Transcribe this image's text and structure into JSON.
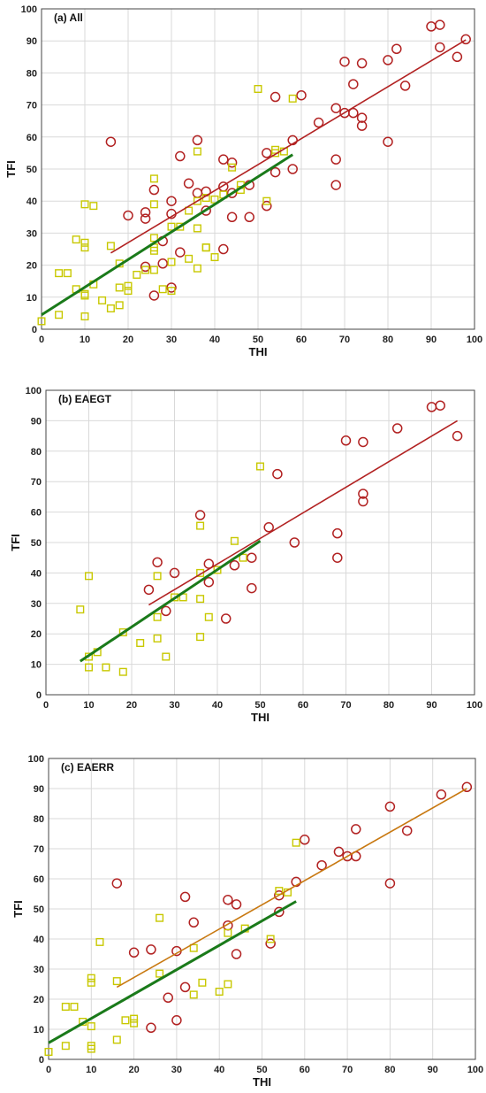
{
  "chart_data": [
    {
      "type": "scatter",
      "title": "(a) All",
      "xlabel": "THI",
      "ylabel": "TFI",
      "xlim": [
        0,
        100
      ],
      "ylim": [
        0,
        100
      ],
      "grid": true,
      "xticks": [
        "0",
        "10",
        "20",
        "30",
        "40",
        "50",
        "60",
        "70",
        "80",
        "90",
        "100"
      ],
      "yticks": [
        "0",
        "10",
        "20",
        "30",
        "40",
        "50",
        "60",
        "70",
        "80",
        "90",
        "100"
      ],
      "series": [
        {
          "marker": "circle",
          "color": "#b22222",
          "x": [
            16,
            20,
            24,
            24,
            24,
            26,
            26,
            28,
            28,
            30,
            30,
            30,
            32,
            32,
            34,
            36,
            36,
            38,
            38,
            42,
            42,
            42,
            44,
            44,
            44,
            48,
            48,
            52,
            52,
            54,
            54,
            58,
            58,
            60,
            64,
            68,
            68,
            68,
            70,
            70,
            72,
            72,
            74,
            74,
            74,
            80,
            80,
            82,
            84,
            90,
            92,
            92,
            96,
            98
          ],
          "y": [
            58.5,
            35.5,
            36.5,
            34.5,
            19.5,
            43.5,
            10.5,
            27.5,
            20.5,
            40,
            36,
            13,
            54,
            24,
            45.5,
            59,
            42.5,
            43,
            37,
            53,
            44.5,
            25,
            52,
            42.5,
            35,
            45,
            35,
            55,
            38.5,
            72.5,
            49,
            59,
            50,
            73,
            64.5,
            69,
            53,
            45,
            83.5,
            67.5,
            76.5,
            67.5,
            83,
            66,
            63.5,
            84,
            58.5,
            87.5,
            76,
            94.5,
            95,
            88,
            85,
            90.5
          ]
        },
        {
          "marker": "square",
          "color": "#c8c800",
          "x": [
            0,
            4,
            4,
            6,
            8,
            8,
            10,
            10,
            10,
            10,
            10,
            10,
            12,
            12,
            14,
            16,
            16,
            18,
            18,
            18,
            20,
            20,
            22,
            24,
            26,
            26,
            26,
            26,
            26,
            26,
            28,
            30,
            30,
            30,
            32,
            34,
            34,
            36,
            36,
            36,
            36,
            38,
            38,
            38,
            40,
            40,
            42,
            44,
            46,
            46,
            50,
            52,
            54,
            54,
            56,
            58
          ],
          "y": [
            2.5,
            17.5,
            4.5,
            17.5,
            28,
            12.5,
            39,
            27,
            25.5,
            11,
            10.5,
            4,
            38.5,
            14,
            9,
            26,
            6.5,
            20.5,
            13,
            7.5,
            13.5,
            12,
            17,
            18.5,
            47,
            39,
            28.5,
            25.5,
            24.5,
            18.5,
            12.5,
            32,
            21,
            12,
            32,
            37,
            22,
            55.5,
            40,
            31.5,
            19,
            41,
            25.5,
            25.5,
            40.5,
            22.5,
            42,
            50.5,
            45,
            43.5,
            75,
            40,
            56,
            55,
            55.5,
            72
          ]
        }
      ],
      "fit_lines": [
        {
          "color": "#b22222",
          "x": [
            16,
            98
          ],
          "y": [
            23.8,
            90.3
          ]
        },
        {
          "color": "#1a7a1a",
          "x": [
            0,
            58
          ],
          "y": [
            4.5,
            54.5
          ]
        }
      ]
    },
    {
      "type": "scatter",
      "title": "(b) EAEGT",
      "xlabel": "THI",
      "ylabel": "TFI",
      "xlim": [
        0,
        100
      ],
      "ylim": [
        0,
        100
      ],
      "grid": true,
      "xticks": [
        "0",
        "10",
        "20",
        "30",
        "40",
        "50",
        "60",
        "70",
        "80",
        "90",
        "100"
      ],
      "yticks": [
        "0",
        "10",
        "20",
        "30",
        "40",
        "50",
        "60",
        "70",
        "80",
        "90",
        "100"
      ],
      "series": [
        {
          "marker": "circle",
          "color": "#b22222",
          "x": [
            24,
            26,
            28,
            30,
            36,
            38,
            38,
            42,
            44,
            48,
            48,
            52,
            54,
            58,
            68,
            68,
            70,
            74,
            74,
            74,
            82,
            90,
            92,
            96
          ],
          "y": [
            34.5,
            43.5,
            27.5,
            40,
            59,
            43,
            37,
            25,
            42.5,
            45,
            35,
            55,
            72.5,
            50,
            53,
            45,
            83.5,
            83,
            66,
            63.5,
            87.5,
            94.5,
            95,
            85
          ]
        },
        {
          "marker": "square",
          "color": "#c8c800",
          "x": [
            8,
            10,
            10,
            10,
            12,
            14,
            18,
            18,
            22,
            26,
            26,
            26,
            28,
            30,
            32,
            36,
            36,
            36,
            36,
            38,
            40,
            44,
            46,
            50
          ],
          "y": [
            28,
            39,
            12.5,
            9,
            14,
            9,
            20.5,
            7.5,
            17,
            39,
            25.5,
            18.5,
            12.5,
            32,
            32,
            55.5,
            40,
            31.5,
            19,
            25.5,
            41,
            50.5,
            45,
            75
          ]
        }
      ],
      "fit_lines": [
        {
          "color": "#b22222",
          "x": [
            24,
            96
          ],
          "y": [
            29.5,
            90
          ]
        },
        {
          "color": "#1a7a1a",
          "x": [
            8,
            50
          ],
          "y": [
            11,
            50.5
          ]
        }
      ]
    },
    {
      "type": "scatter",
      "title": "(c) EAERR",
      "xlabel": "THI",
      "ylabel": "TFI",
      "xlim": [
        0,
        100
      ],
      "ylim": [
        0,
        100
      ],
      "grid": true,
      "xticks": [
        "0",
        "10",
        "20",
        "30",
        "40",
        "50",
        "60",
        "70",
        "80",
        "90",
        "100"
      ],
      "yticks": [
        "0",
        "10",
        "20",
        "30",
        "40",
        "50",
        "60",
        "70",
        "80",
        "90",
        "100"
      ],
      "series": [
        {
          "marker": "circle",
          "color": "#b22222",
          "x": [
            16,
            20,
            24,
            24,
            28,
            30,
            30,
            32,
            32,
            34,
            42,
            42,
            44,
            44,
            52,
            54,
            54,
            58,
            60,
            64,
            68,
            70,
            72,
            72,
            80,
            80,
            84,
            92,
            98
          ],
          "y": [
            58.5,
            35.5,
            36.5,
            10.5,
            20.5,
            36,
            13,
            54,
            24,
            45.5,
            53,
            44.5,
            51.5,
            35,
            38.5,
            54.5,
            49,
            59,
            73,
            64.5,
            69,
            67.5,
            76.5,
            67.5,
            84,
            58.5,
            76,
            88,
            90.5
          ]
        },
        {
          "marker": "square",
          "color": "#c8c800",
          "x": [
            0,
            4,
            4,
            6,
            8,
            10,
            10,
            10,
            10,
            10,
            12,
            16,
            16,
            18,
            20,
            20,
            26,
            26,
            34,
            34,
            36,
            40,
            42,
            42,
            46,
            52,
            54,
            56,
            58
          ],
          "y": [
            2.5,
            17.5,
            4.5,
            17.5,
            12.5,
            27,
            25.5,
            11,
            4.5,
            3.5,
            39,
            26,
            6.5,
            13,
            13.5,
            12,
            47,
            28.5,
            37,
            21.5,
            25.5,
            22.5,
            42,
            25,
            43.5,
            40,
            56,
            55.5,
            72
          ]
        }
      ],
      "fit_lines": [
        {
          "color": "#c87810",
          "x": [
            16,
            98
          ],
          "y": [
            24,
            90
          ]
        },
        {
          "color": "#1a7a1a",
          "x": [
            0,
            58
          ],
          "y": [
            5.5,
            52.5
          ]
        }
      ]
    }
  ]
}
